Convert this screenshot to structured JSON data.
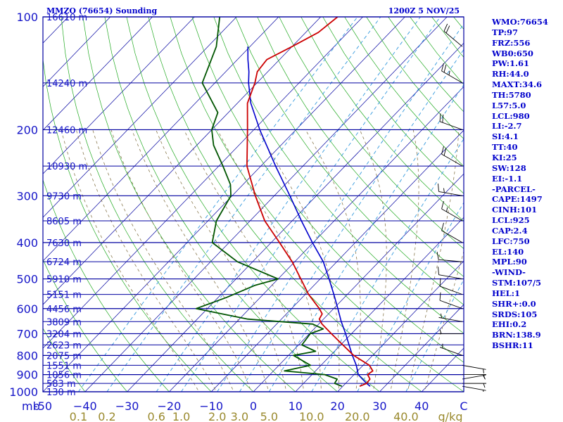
{
  "header": {
    "station": "MMZO (76654) Sounding",
    "time": "1200Z  5 NOV/25"
  },
  "indices": [
    "WMO:76654",
    "TP:97",
    "FRZ:556",
    "WB0:650",
    "PW:1.61",
    "RH:44.0",
    "MAXT:34.6",
    "TH:5780",
    "L57:5.0",
    "LCL:980",
    "LI:-2.7",
    "SI:4.1",
    "TT:40",
    "KI:25",
    "SW:128",
    "EI:-1.1",
    "-PARCEL-",
    "CAPE:1497",
    "CINH:101",
    "LCL:925",
    "CAP:2.4",
    "LFC:750",
    "EL:140",
    "MPL:90",
    "-WIND-",
    "STM:107/5",
    "HEL:1",
    "SHR+:0.0",
    "SRDS:105",
    "EHI:0.2",
    "BRN:138.9",
    "BSHR:11"
  ],
  "colors": {
    "frame": "#0000a0",
    "isobar": "#0000a0",
    "isotherm": "#0000a0",
    "dry_adiabat": "#22aa22",
    "moist_adiabat": "#8a7a50",
    "mixing_ratio": "#3399dd",
    "temperature": "#cc0000",
    "dewpoint": "#005500",
    "parcel": "#0000cc",
    "axis_text": "#1515c8",
    "mixratio_text": "#9a8a2e",
    "wind": "#000000"
  },
  "chart_data": {
    "type": "line",
    "title": "MMZO (76654) Sounding",
    "subtitle": "1200Z  5 NOV/25",
    "xlabel": "",
    "ylabel": "mb",
    "x_unit": "C",
    "xlim": [
      -50,
      50
    ],
    "ylim": [
      1000,
      100
    ],
    "x_ticks": [
      -50,
      -40,
      -30,
      -20,
      -10,
      0,
      10,
      20,
      30,
      40
    ],
    "x_tick_labels": [
      "-50",
      "−40",
      "−30",
      "−20",
      "−10",
      "0",
      "10",
      "20",
      "30",
      "40"
    ],
    "axis_end_label": "C",
    "pressure_axis_label": "mb",
    "pressure_ticks": [
      100,
      200,
      300,
      400,
      500,
      600,
      700,
      800,
      900,
      1000
    ],
    "pressure_tick_labels": [
      "100",
      "200",
      "300",
      "400",
      "500",
      "600",
      "700",
      "800",
      "900",
      "1000"
    ],
    "height_labels": [
      {
        "p": 100,
        "label": "16610 m"
      },
      {
        "p": 150,
        "label": "14240 m"
      },
      {
        "p": 200,
        "label": "12460 m"
      },
      {
        "p": 250,
        "label": "10930 m"
      },
      {
        "p": 300,
        "label": "9730 m"
      },
      {
        "p": 350,
        "label": "8605 m"
      },
      {
        "p": 400,
        "label": "7630 m"
      },
      {
        "p": 450,
        "label": "6724 m"
      },
      {
        "p": 500,
        "label": "5910 m"
      },
      {
        "p": 550,
        "label": "5151 m"
      },
      {
        "p": 600,
        "label": "4456 m"
      },
      {
        "p": 650,
        "label": "3809 m"
      },
      {
        "p": 700,
        "label": "3204 m"
      },
      {
        "p": 750,
        "label": "2623 m"
      },
      {
        "p": 800,
        "label": "2075 m"
      },
      {
        "p": 850,
        "label": "1551 m"
      },
      {
        "p": 900,
        "label": "1056 m"
      },
      {
        "p": 950,
        "label": "583 m"
      },
      {
        "p": 1000,
        "label": "130 m"
      }
    ],
    "mixing_ratio_labels": [
      "0.1",
      "0.2",
      "0.6",
      "1.0",
      "2.0",
      "3.0",
      "5.0",
      "10.0",
      "20.0",
      "40.0"
    ],
    "mixing_ratio_unit": "g/kg",
    "series": [
      {
        "name": "Temperature",
        "p": [
          967,
          950,
          925,
          900,
          880,
          850,
          800,
          750,
          700,
          660,
          640,
          620,
          600,
          550,
          500,
          450,
          400,
          350,
          300,
          250,
          200,
          170,
          150,
          140,
          130,
          120,
          110,
          100
        ],
        "t": [
          24.0,
          25.0,
          24.8,
          23.2,
          23.6,
          21.5,
          15.5,
          10.5,
          5.2,
          0.8,
          -1.0,
          -1.5,
          -3.4,
          -9.2,
          -14.6,
          -20.6,
          -28.0,
          -36.5,
          -44.5,
          -53.3,
          -61.5,
          -67.6,
          -70.5,
          -72.5,
          -73.0,
          -70.0,
          -67.0,
          -66.0
        ]
      },
      {
        "name": "Dewpoint",
        "p": [
          967,
          950,
          925,
          900,
          880,
          850,
          800,
          780,
          750,
          700,
          680,
          660,
          640,
          600,
          560,
          520,
          500,
          450,
          400,
          350,
          300,
          280,
          250,
          220,
          200,
          180,
          150,
          120,
          100
        ],
        "t": [
          19.8,
          17.4,
          17.0,
          13.0,
          2.6,
          7.5,
          1.2,
          5.5,
          0.8,
          0.2,
          2.2,
          -1.4,
          -18.0,
          -32.7,
          -28.0,
          -24.0,
          -20.0,
          -33.6,
          -44.0,
          -48.0,
          -50.3,
          -53.0,
          -59.0,
          -66.0,
          -70.0,
          -72.5,
          -83.0,
          -88.0,
          -94.0
        ]
      },
      {
        "name": "Parcel",
        "p": [
          967,
          950,
          925,
          900,
          850,
          800,
          750,
          700,
          650,
          600,
          550,
          500,
          450,
          400,
          350,
          300,
          250,
          200,
          170,
          150,
          140,
          130,
          120
        ],
        "t": [
          26.5,
          25.0,
          23.0,
          21.0,
          18.4,
          15.2,
          12.0,
          8.6,
          4.8,
          1.0,
          -3.2,
          -7.9,
          -13.2,
          -20.2,
          -27.8,
          -36.3,
          -46.5,
          -58.6,
          -66.8,
          -72.0,
          -74.5,
          -77.5,
          -80.5
        ]
      }
    ],
    "wind_barbs": [
      {
        "p": 967,
        "dir": 100,
        "spd": 5
      },
      {
        "p": 950,
        "dir": 90,
        "spd": 5
      },
      {
        "p": 925,
        "dir": 80,
        "spd": 5
      },
      {
        "p": 900,
        "dir": 90,
        "spd": 5
      },
      {
        "p": 850,
        "dir": 100,
        "spd": 5
      },
      {
        "p": 800,
        "dir": 290,
        "spd": 5
      },
      {
        "p": 700,
        "dir": 270,
        "spd": 5
      },
      {
        "p": 650,
        "dir": 280,
        "spd": 5
      },
      {
        "p": 600,
        "dir": 290,
        "spd": 10
      },
      {
        "p": 550,
        "dir": 290,
        "spd": 10
      },
      {
        "p": 500,
        "dir": 280,
        "spd": 10
      },
      {
        "p": 450,
        "dir": 275,
        "spd": 10
      },
      {
        "p": 400,
        "dir": 300,
        "spd": 10
      },
      {
        "p": 350,
        "dir": 300,
        "spd": 15
      },
      {
        "p": 300,
        "dir": 280,
        "spd": 15
      },
      {
        "p": 250,
        "dir": 300,
        "spd": 20
      },
      {
        "p": 200,
        "dir": 290,
        "spd": 20
      },
      {
        "p": 150,
        "dir": 300,
        "spd": 25
      },
      {
        "p": 120,
        "dir": 310,
        "spd": 20
      },
      {
        "p": 100,
        "dir": 300,
        "spd": 20
      }
    ]
  }
}
